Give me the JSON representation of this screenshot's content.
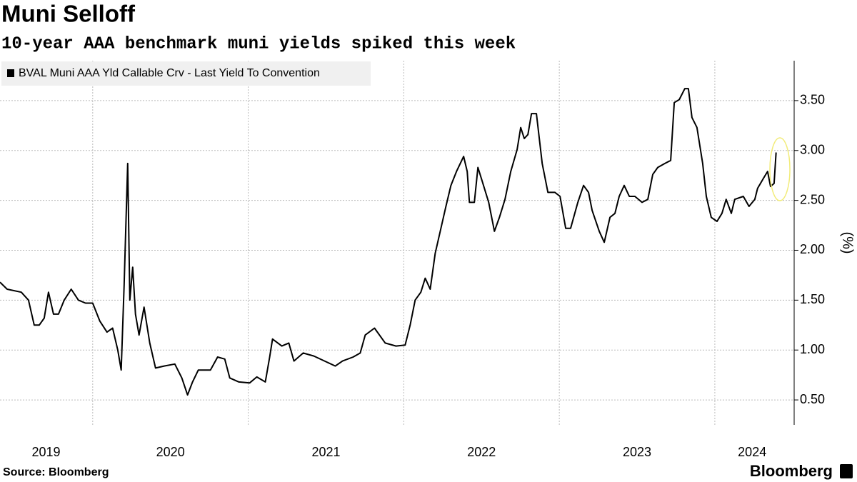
{
  "chart_data": {
    "type": "line",
    "title": "Muni Selloff",
    "subtitle": "10-year AAA benchmark muni yields spiked this week",
    "y_label": "(%)",
    "source": "Source: Bloomberg",
    "brand": "Bloomberg",
    "x": [
      2019.404,
      2019.45,
      2019.541,
      2019.587,
      2019.624,
      2019.656,
      2019.688,
      2019.716,
      2019.748,
      2019.78,
      2019.817,
      2019.862,
      2019.908,
      2019.954,
      2020.0,
      2020.046,
      2020.092,
      2020.128,
      2020.161,
      2020.183,
      2020.202,
      2020.225,
      2020.239,
      2020.257,
      2020.275,
      2020.298,
      2020.33,
      2020.367,
      2020.404,
      2020.459,
      2020.528,
      2020.573,
      2020.61,
      2020.642,
      2020.679,
      2020.757,
      2020.803,
      2020.849,
      2020.881,
      2020.94,
      2021.009,
      2021.055,
      2021.11,
      2021.138,
      2021.156,
      2021.216,
      2021.261,
      2021.294,
      2021.353,
      2021.422,
      2021.491,
      2021.56,
      2021.606,
      2021.674,
      2021.72,
      2021.752,
      2021.812,
      2021.881,
      2021.95,
      2022.009,
      2022.041,
      2022.073,
      2022.11,
      2022.138,
      2022.17,
      2022.202,
      2022.239,
      2022.271,
      2022.303,
      2022.339,
      2022.385,
      2022.408,
      2022.422,
      2022.454,
      2022.477,
      2022.505,
      2022.546,
      2022.583,
      2022.615,
      2022.651,
      2022.688,
      2022.729,
      2022.752,
      2022.775,
      2022.798,
      2022.821,
      2022.853,
      2022.89,
      2022.927,
      2022.972,
      2023.005,
      2023.041,
      2023.073,
      2023.119,
      2023.156,
      2023.188,
      2023.211,
      2023.257,
      2023.289,
      2023.326,
      2023.358,
      2023.385,
      2023.417,
      2023.45,
      2023.486,
      2023.532,
      2023.569,
      2023.601,
      2023.633,
      2023.679,
      2023.716,
      2023.739,
      2023.771,
      2023.807,
      2023.83,
      2023.853,
      2023.885,
      2023.922,
      2023.945,
      2023.977,
      2024.014,
      2024.046,
      2024.073,
      2024.106,
      2024.128,
      2024.183,
      2024.22,
      2024.257,
      2024.275,
      2024.312,
      2024.339,
      2024.358,
      2024.381,
      2024.394
    ],
    "series": [
      {
        "name": "BVAL Muni AAA Yld Callable Crv - Last Yield To Convention",
        "color": "#000000",
        "values": [
          1.68,
          1.61,
          1.58,
          1.5,
          1.25,
          1.25,
          1.32,
          1.58,
          1.36,
          1.36,
          1.5,
          1.61,
          1.5,
          1.47,
          1.47,
          1.29,
          1.18,
          1.22,
          1.0,
          0.8,
          1.65,
          2.87,
          1.5,
          1.83,
          1.36,
          1.15,
          1.43,
          1.07,
          0.82,
          0.84,
          0.86,
          0.72,
          0.55,
          0.68,
          0.8,
          0.8,
          0.93,
          0.91,
          0.72,
          0.68,
          0.67,
          0.73,
          0.68,
          0.93,
          1.11,
          1.04,
          1.07,
          0.89,
          0.97,
          0.94,
          0.89,
          0.84,
          0.89,
          0.93,
          0.97,
          1.15,
          1.22,
          1.07,
          1.04,
          1.05,
          1.25,
          1.5,
          1.58,
          1.72,
          1.61,
          1.97,
          2.22,
          2.44,
          2.65,
          2.79,
          2.94,
          2.79,
          2.48,
          2.48,
          2.83,
          2.69,
          2.48,
          2.19,
          2.33,
          2.51,
          2.79,
          3.01,
          3.23,
          3.12,
          3.16,
          3.37,
          3.37,
          2.87,
          2.58,
          2.58,
          2.54,
          2.22,
          2.22,
          2.48,
          2.65,
          2.58,
          2.4,
          2.19,
          2.08,
          2.33,
          2.37,
          2.54,
          2.65,
          2.54,
          2.54,
          2.48,
          2.51,
          2.76,
          2.83,
          2.87,
          2.9,
          3.48,
          3.51,
          3.62,
          3.62,
          3.33,
          3.23,
          2.87,
          2.54,
          2.33,
          2.29,
          2.37,
          2.51,
          2.37,
          2.51,
          2.54,
          2.44,
          2.51,
          2.62,
          2.72,
          2.79,
          2.64,
          2.67,
          2.98
        ]
      }
    ],
    "xlim": [
      2019.404,
      2024.51
    ],
    "xticks": [
      {
        "value": 2019.7,
        "label": "2019"
      },
      {
        "value": 2020.5,
        "label": "2020"
      },
      {
        "value": 2021.5,
        "label": "2021"
      },
      {
        "value": 2022.5,
        "label": "2022"
      },
      {
        "value": 2023.5,
        "label": "2023"
      },
      {
        "value": 2024.24,
        "label": "2024"
      }
    ],
    "xgrid": [
      2020,
      2021,
      2022,
      2023,
      2024
    ],
    "ylim": [
      0.25,
      3.9
    ],
    "yticks": [
      {
        "value": 0.5,
        "label": "0.50"
      },
      {
        "value": 1.0,
        "label": "1.00"
      },
      {
        "value": 1.5,
        "label": "1.50"
      },
      {
        "value": 2.0,
        "label": "2.00"
      },
      {
        "value": 2.5,
        "label": "2.50"
      },
      {
        "value": 3.0,
        "label": "3.00"
      },
      {
        "value": 3.5,
        "label": "3.50"
      }
    ],
    "grid": true
  }
}
